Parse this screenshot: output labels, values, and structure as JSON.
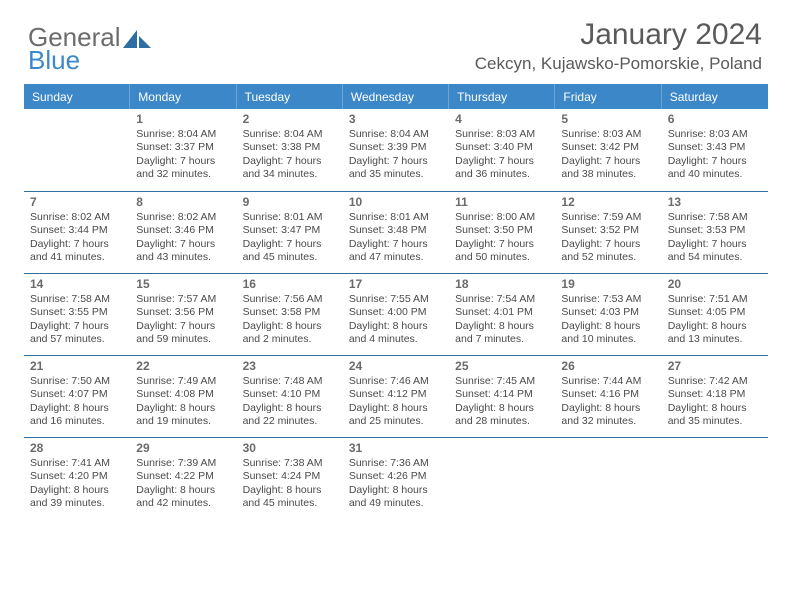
{
  "brand": {
    "part1": "General",
    "part2": "Blue"
  },
  "colors": {
    "header_bg": "#3b87c8",
    "header_border": "#6aa5d4",
    "row_rule": "#2f6ea3",
    "text_dark": "#4a4a4a",
    "text_daynum": "#6a6a6a",
    "title_color": "#5a5a5a",
    "brand_gray": "#6c6c6c",
    "brand_blue": "#3d88c9",
    "page_bg": "#ffffff"
  },
  "title": "January 2024",
  "location": "Cekcyn, Kujawsko-Pomorskie, Poland",
  "weekdays": [
    "Sunday",
    "Monday",
    "Tuesday",
    "Wednesday",
    "Thursday",
    "Friday",
    "Saturday"
  ],
  "grid": {
    "start_weekday_index": 1,
    "days": [
      {
        "n": 1,
        "sunrise": "8:04 AM",
        "sunset": "3:37 PM",
        "daylight": "7 hours and 32 minutes."
      },
      {
        "n": 2,
        "sunrise": "8:04 AM",
        "sunset": "3:38 PM",
        "daylight": "7 hours and 34 minutes."
      },
      {
        "n": 3,
        "sunrise": "8:04 AM",
        "sunset": "3:39 PM",
        "daylight": "7 hours and 35 minutes."
      },
      {
        "n": 4,
        "sunrise": "8:03 AM",
        "sunset": "3:40 PM",
        "daylight": "7 hours and 36 minutes."
      },
      {
        "n": 5,
        "sunrise": "8:03 AM",
        "sunset": "3:42 PM",
        "daylight": "7 hours and 38 minutes."
      },
      {
        "n": 6,
        "sunrise": "8:03 AM",
        "sunset": "3:43 PM",
        "daylight": "7 hours and 40 minutes."
      },
      {
        "n": 7,
        "sunrise": "8:02 AM",
        "sunset": "3:44 PM",
        "daylight": "7 hours and 41 minutes."
      },
      {
        "n": 8,
        "sunrise": "8:02 AM",
        "sunset": "3:46 PM",
        "daylight": "7 hours and 43 minutes."
      },
      {
        "n": 9,
        "sunrise": "8:01 AM",
        "sunset": "3:47 PM",
        "daylight": "7 hours and 45 minutes."
      },
      {
        "n": 10,
        "sunrise": "8:01 AM",
        "sunset": "3:48 PM",
        "daylight": "7 hours and 47 minutes."
      },
      {
        "n": 11,
        "sunrise": "8:00 AM",
        "sunset": "3:50 PM",
        "daylight": "7 hours and 50 minutes."
      },
      {
        "n": 12,
        "sunrise": "7:59 AM",
        "sunset": "3:52 PM",
        "daylight": "7 hours and 52 minutes."
      },
      {
        "n": 13,
        "sunrise": "7:58 AM",
        "sunset": "3:53 PM",
        "daylight": "7 hours and 54 minutes."
      },
      {
        "n": 14,
        "sunrise": "7:58 AM",
        "sunset": "3:55 PM",
        "daylight": "7 hours and 57 minutes."
      },
      {
        "n": 15,
        "sunrise": "7:57 AM",
        "sunset": "3:56 PM",
        "daylight": "7 hours and 59 minutes."
      },
      {
        "n": 16,
        "sunrise": "7:56 AM",
        "sunset": "3:58 PM",
        "daylight": "8 hours and 2 minutes."
      },
      {
        "n": 17,
        "sunrise": "7:55 AM",
        "sunset": "4:00 PM",
        "daylight": "8 hours and 4 minutes."
      },
      {
        "n": 18,
        "sunrise": "7:54 AM",
        "sunset": "4:01 PM",
        "daylight": "8 hours and 7 minutes."
      },
      {
        "n": 19,
        "sunrise": "7:53 AM",
        "sunset": "4:03 PM",
        "daylight": "8 hours and 10 minutes."
      },
      {
        "n": 20,
        "sunrise": "7:51 AM",
        "sunset": "4:05 PM",
        "daylight": "8 hours and 13 minutes."
      },
      {
        "n": 21,
        "sunrise": "7:50 AM",
        "sunset": "4:07 PM",
        "daylight": "8 hours and 16 minutes."
      },
      {
        "n": 22,
        "sunrise": "7:49 AM",
        "sunset": "4:08 PM",
        "daylight": "8 hours and 19 minutes."
      },
      {
        "n": 23,
        "sunrise": "7:48 AM",
        "sunset": "4:10 PM",
        "daylight": "8 hours and 22 minutes."
      },
      {
        "n": 24,
        "sunrise": "7:46 AM",
        "sunset": "4:12 PM",
        "daylight": "8 hours and 25 minutes."
      },
      {
        "n": 25,
        "sunrise": "7:45 AM",
        "sunset": "4:14 PM",
        "daylight": "8 hours and 28 minutes."
      },
      {
        "n": 26,
        "sunrise": "7:44 AM",
        "sunset": "4:16 PM",
        "daylight": "8 hours and 32 minutes."
      },
      {
        "n": 27,
        "sunrise": "7:42 AM",
        "sunset": "4:18 PM",
        "daylight": "8 hours and 35 minutes."
      },
      {
        "n": 28,
        "sunrise": "7:41 AM",
        "sunset": "4:20 PM",
        "daylight": "8 hours and 39 minutes."
      },
      {
        "n": 29,
        "sunrise": "7:39 AM",
        "sunset": "4:22 PM",
        "daylight": "8 hours and 42 minutes."
      },
      {
        "n": 30,
        "sunrise": "7:38 AM",
        "sunset": "4:24 PM",
        "daylight": "8 hours and 45 minutes."
      },
      {
        "n": 31,
        "sunrise": "7:36 AM",
        "sunset": "4:26 PM",
        "daylight": "8 hours and 49 minutes."
      }
    ]
  },
  "labels": {
    "sunrise": "Sunrise:",
    "sunset": "Sunset:",
    "daylight": "Daylight:"
  }
}
